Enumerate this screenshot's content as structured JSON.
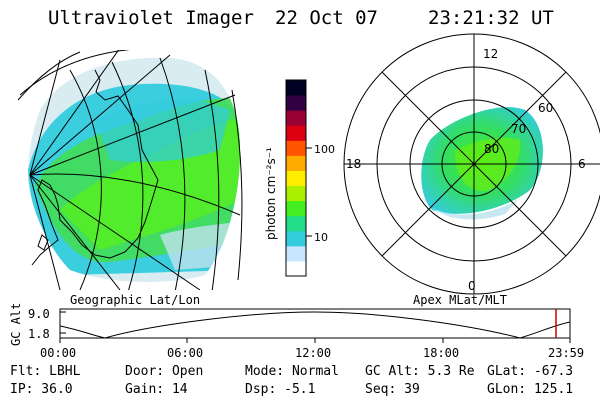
{
  "header": {
    "instrument": "Ultraviolet Imager",
    "date": "22 Oct 07",
    "time": "23:21:32 UT"
  },
  "colorbar": {
    "unit_label": "photon cm⁻²s⁻¹",
    "tick_100": "100",
    "tick_10": "10",
    "colors": [
      "#ffffff",
      "#c8e6ff",
      "#33ccdd",
      "#22dd88",
      "#44ee22",
      "#aaee00",
      "#ffee00",
      "#ffaa00",
      "#ff5500",
      "#dd0011",
      "#990033",
      "#330044",
      "#000022"
    ]
  },
  "left_panel": {
    "caption": "Geographic Lat/Lon"
  },
  "right_panel": {
    "caption": "Apex MLat/MLT",
    "mlt_12": "12",
    "mlt_18": "18",
    "mlt_6": "6",
    "mlt_0": "0",
    "lat_60": "60",
    "lat_70": "70",
    "lat_80": "80"
  },
  "altitude_plot": {
    "ylabel": "GC Alt",
    "y_top": "9.0",
    "y_bottom": "1.8",
    "x_ticks": [
      "00:00",
      "06:00",
      "12:00",
      "18:00",
      "23:59"
    ],
    "current_time_marker_color": "#cc0000"
  },
  "info": {
    "flt": "Flt: LBHL",
    "ip": "IP: 36.0",
    "door": "Door: Open",
    "gain": "Gain: 14",
    "mode": "Mode: Normal",
    "dsp": "Dsp:   -5.1",
    "gc_alt": "GC Alt: 5.3 Re",
    "seq": "Seq: 39",
    "glat": "GLat: -67.3",
    "glon": "GLon: 125.1"
  }
}
